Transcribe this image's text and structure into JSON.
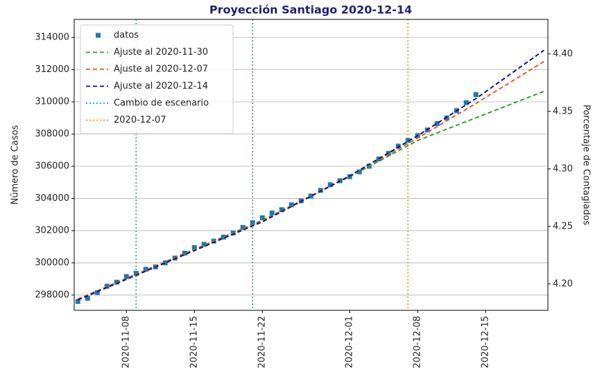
{
  "chart_data": {
    "type": "line",
    "title": "Proyección Santiago 2020-12-14",
    "y_label": "Número de Casos",
    "y2_label": "Porcentaje de Contagiados",
    "xlim": [
      "2020-11-02T15:00",
      "2020-12-21T10:00"
    ],
    "xticks": [
      "2020-11-08",
      "2020-11-15",
      "2020-11-22",
      "2020-12-01",
      "2020-12-08",
      "2020-12-15"
    ],
    "ylim": [
      297050,
      315120
    ],
    "yticks": [
      298000,
      300000,
      302000,
      304000,
      306000,
      308000,
      310000,
      312000,
      314000
    ],
    "y2lim": [
      4.177,
      4.43
    ],
    "y2ticks": [
      {
        "value": 4.2,
        "label": "4.20"
      },
      4.25,
      {
        "value": 4.3,
        "label": "4.30"
      },
      4.35,
      {
        "value": 4.4,
        "label": "4.40"
      }
    ],
    "grid": true,
    "legend": "upper left",
    "series": [
      {
        "name": "datos",
        "kind": "scatter",
        "marker": "square",
        "color": "#1f77b4",
        "x": [
          "2020-11-03",
          "2020-11-04",
          "2020-11-05",
          "2020-11-06",
          "2020-11-07",
          "2020-11-08",
          "2020-11-09",
          "2020-11-10",
          "2020-11-11",
          "2020-11-12",
          "2020-11-13",
          "2020-11-14",
          "2020-11-15",
          "2020-11-16",
          "2020-11-17",
          "2020-11-18",
          "2020-11-19",
          "2020-11-20",
          "2020-11-21",
          "2020-11-22",
          "2020-11-23",
          "2020-11-24",
          "2020-11-25",
          "2020-11-26",
          "2020-11-27",
          "2020-11-28",
          "2020-11-29",
          "2020-11-30",
          "2020-12-01",
          "2020-12-02",
          "2020-12-03",
          "2020-12-04",
          "2020-12-05",
          "2020-12-06",
          "2020-12-07",
          "2020-12-08",
          "2020-12-09",
          "2020-12-10",
          "2020-12-11",
          "2020-12-12",
          "2020-12-13",
          "2020-12-14"
        ],
        "values": [
          297600,
          297800,
          298150,
          298550,
          298800,
          299150,
          299350,
          299600,
          299750,
          300000,
          300300,
          300600,
          300950,
          301150,
          301350,
          301600,
          301850,
          302200,
          302500,
          302800,
          303100,
          303300,
          303600,
          303850,
          304150,
          304500,
          304850,
          305100,
          305350,
          305650,
          306000,
          306450,
          306800,
          307250,
          307600,
          307900,
          308250,
          308650,
          309000,
          309450,
          309950,
          310450
        ]
      },
      {
        "name": "Ajuste al 2020-11-30",
        "kind": "line",
        "dash": "6,4",
        "color": "#2ca02c",
        "x": [
          "2020-11-03",
          "2020-11-22",
          "2020-12-01",
          "2020-12-08",
          "2020-12-21"
        ],
        "values": [
          297750,
          302650,
          305350,
          307600,
          310650
        ]
      },
      {
        "name": "Ajuste al 2020-12-07",
        "kind": "line",
        "dash": "6,4",
        "color": "#f4511e",
        "x": [
          "2020-11-03",
          "2020-11-22",
          "2020-12-01",
          "2020-12-08",
          "2020-12-14",
          "2020-12-21"
        ],
        "values": [
          297750,
          302600,
          305400,
          307750,
          309900,
          312500
        ]
      },
      {
        "name": "Ajuste al 2020-12-14",
        "kind": "line",
        "dash": "6,4",
        "color": "#0a0a80",
        "x": [
          "2020-11-03",
          "2020-11-22",
          "2020-12-01",
          "2020-12-08",
          "2020-12-14",
          "2020-12-21"
        ],
        "values": [
          297700,
          302550,
          305400,
          307900,
          310200,
          313200
        ]
      },
      {
        "name": "Cambio de escenario",
        "kind": "vline",
        "dash": "2,3",
        "color": "#1a9fb0",
        "x": [
          "2020-11-09",
          "2020-11-21"
        ]
      },
      {
        "name": "2020-12-07",
        "kind": "vline",
        "dash": "2,3",
        "color": "#ff8c00",
        "x": [
          "2020-12-07"
        ]
      }
    ]
  }
}
